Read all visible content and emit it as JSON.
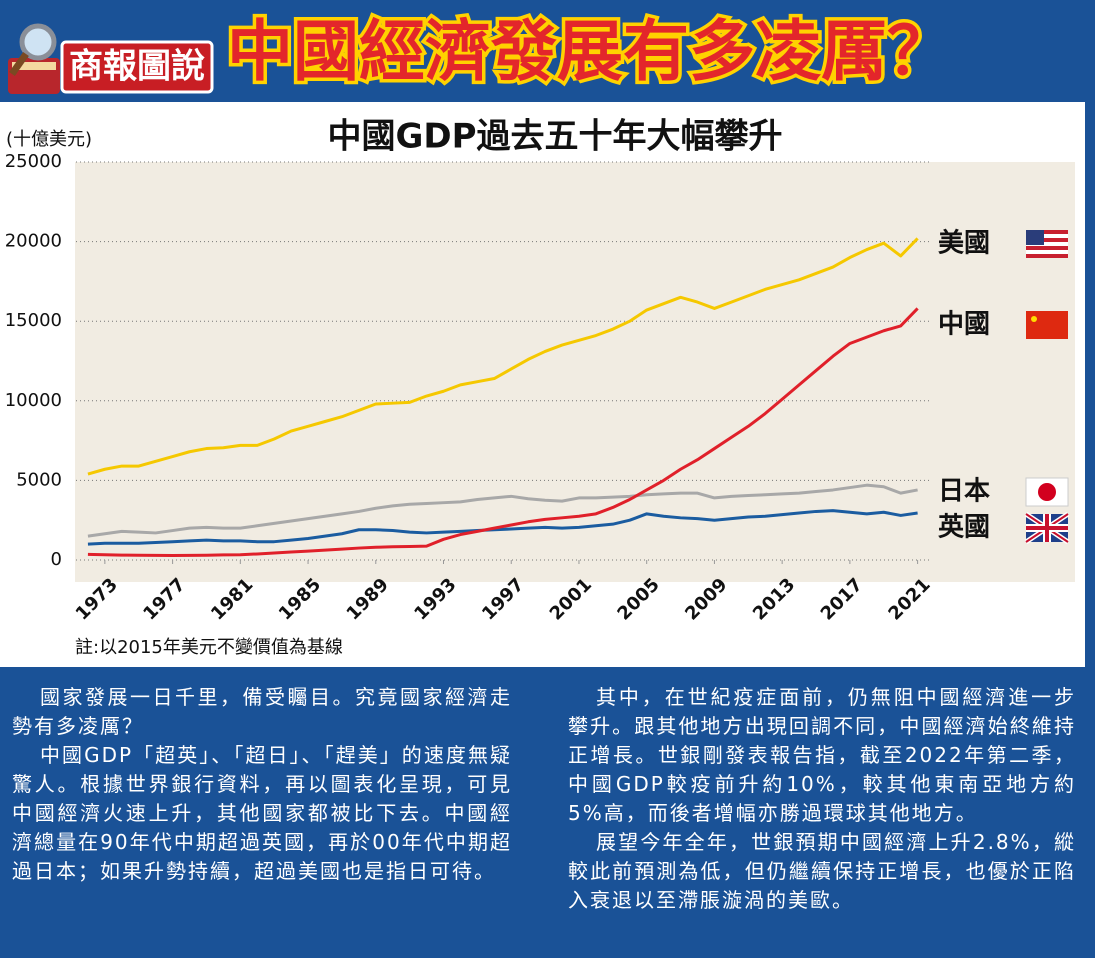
{
  "header": {
    "logo": "商報圖說",
    "title": "中國經濟發展有多凌厲？"
  },
  "chart_data": {
    "type": "line",
    "title": "中國GDP過去五十年大幅攀升",
    "y_label": "(十億美元)",
    "x": [
      1972,
      1973,
      1974,
      1975,
      1976,
      1977,
      1978,
      1979,
      1980,
      1981,
      1982,
      1983,
      1984,
      1985,
      1986,
      1987,
      1988,
      1989,
      1990,
      1991,
      1992,
      1993,
      1994,
      1995,
      1996,
      1997,
      1998,
      1999,
      2000,
      2001,
      2002,
      2003,
      2004,
      2005,
      2006,
      2007,
      2008,
      2009,
      2010,
      2011,
      2012,
      2013,
      2014,
      2015,
      2016,
      2017,
      2018,
      2019,
      2020,
      2021
    ],
    "series": [
      {
        "name": "美國",
        "color": "#f5c800",
        "values": [
          5400,
          5700,
          5900,
          5900,
          6200,
          6500,
          6800,
          7000,
          7050,
          7200,
          7200,
          7600,
          8100,
          8400,
          8700,
          9000,
          9400,
          9800,
          9850,
          9900,
          10300,
          10600,
          11000,
          11200,
          11400,
          12000,
          12600,
          13100,
          13500,
          13800,
          14100,
          14500,
          15000,
          15700,
          16100,
          16500,
          16200,
          15800,
          16200,
          16600,
          17000,
          17300,
          17600,
          18000,
          18400,
          19000,
          19500,
          19900,
          19100,
          20200
        ]
      },
      {
        "name": "中國",
        "color": "#e0202a",
        "values": [
          350,
          330,
          310,
          300,
          290,
          280,
          290,
          300,
          320,
          330,
          380,
          440,
          500,
          560,
          620,
          680,
          750,
          800,
          830,
          850,
          870,
          1300,
          1600,
          1800,
          2000,
          2200,
          2400,
          2550,
          2650,
          2750,
          2900,
          3300,
          3800,
          4400,
          5000,
          5700,
          6300,
          7000,
          7700,
          8400,
          9200,
          10100,
          11000,
          11900,
          12800,
          13600,
          14000,
          14400,
          14700,
          15800
        ]
      },
      {
        "name": "日本",
        "color": "#a8a8a8",
        "values": [
          1500,
          1650,
          1800,
          1750,
          1700,
          1850,
          2000,
          2050,
          2000,
          2000,
          2150,
          2300,
          2450,
          2600,
          2750,
          2900,
          3050,
          3250,
          3400,
          3500,
          3550,
          3600,
          3650,
          3800,
          3900,
          4000,
          3850,
          3750,
          3700,
          3900,
          3900,
          3950,
          4000,
          4100,
          4150,
          4200,
          4200,
          3900,
          4000,
          4050,
          4100,
          4150,
          4200,
          4300,
          4400,
          4550,
          4700,
          4600,
          4200,
          4400
        ]
      },
      {
        "name": "英國",
        "color": "#1b5ca0",
        "values": [
          1000,
          1050,
          1050,
          1050,
          1100,
          1150,
          1200,
          1250,
          1200,
          1200,
          1150,
          1150,
          1250,
          1350,
          1500,
          1650,
          1900,
          1900,
          1850,
          1750,
          1700,
          1750,
          1800,
          1850,
          1900,
          1950,
          2000,
          2050,
          2000,
          2050,
          2150,
          2250,
          2500,
          2900,
          2750,
          2650,
          2600,
          2500,
          2600,
          2700,
          2750,
          2850,
          2950,
          3050,
          3100,
          3000,
          2900,
          3000,
          2800,
          2950
        ]
      }
    ],
    "xlim": [
      1971,
      2030
    ],
    "xticks": [
      1973,
      1977,
      1981,
      1985,
      1989,
      1993,
      1997,
      2001,
      2005,
      2009,
      2013,
      2017,
      2021
    ],
    "ylim": [
      0,
      25000
    ],
    "yticks": [
      0,
      5000,
      10000,
      15000,
      20000,
      25000
    ],
    "grid": true
  },
  "note": "註:以2015年美元不變價值為基線",
  "article": {
    "left": [
      "國家發展一日千里，備受矚目。究竟國家經濟走勢有多凌厲？",
      "中國GDP「超英」、「超日」、「趕美」的速度無疑驚人。根據世界銀行資料，再以圖表化呈現，可見中國經濟火速上升，其他國家都被比下去。中國經濟總量在90年代中期超過英國，再於00年代中期超過日本；如果升勢持續，超過美國也是指日可待。"
    ],
    "right": [
      "其中，在世紀疫症面前，仍無阻中國經濟進一步攀升。跟其他地方出現回調不同，中國經濟始終維持正增長。世銀剛發表報告指，截至2022年第二季，中國GDP較疫前升約10%，較其他東南亞地方約5%高，而後者增幅亦勝過環球其他地方。",
      "展望今年全年，世銀預期中國經濟上升2.8%，縱較此前預測為低，但仍繼續保持正增長，也優於正陷入衰退以至滯脹漩渦的美歐。"
    ]
  }
}
